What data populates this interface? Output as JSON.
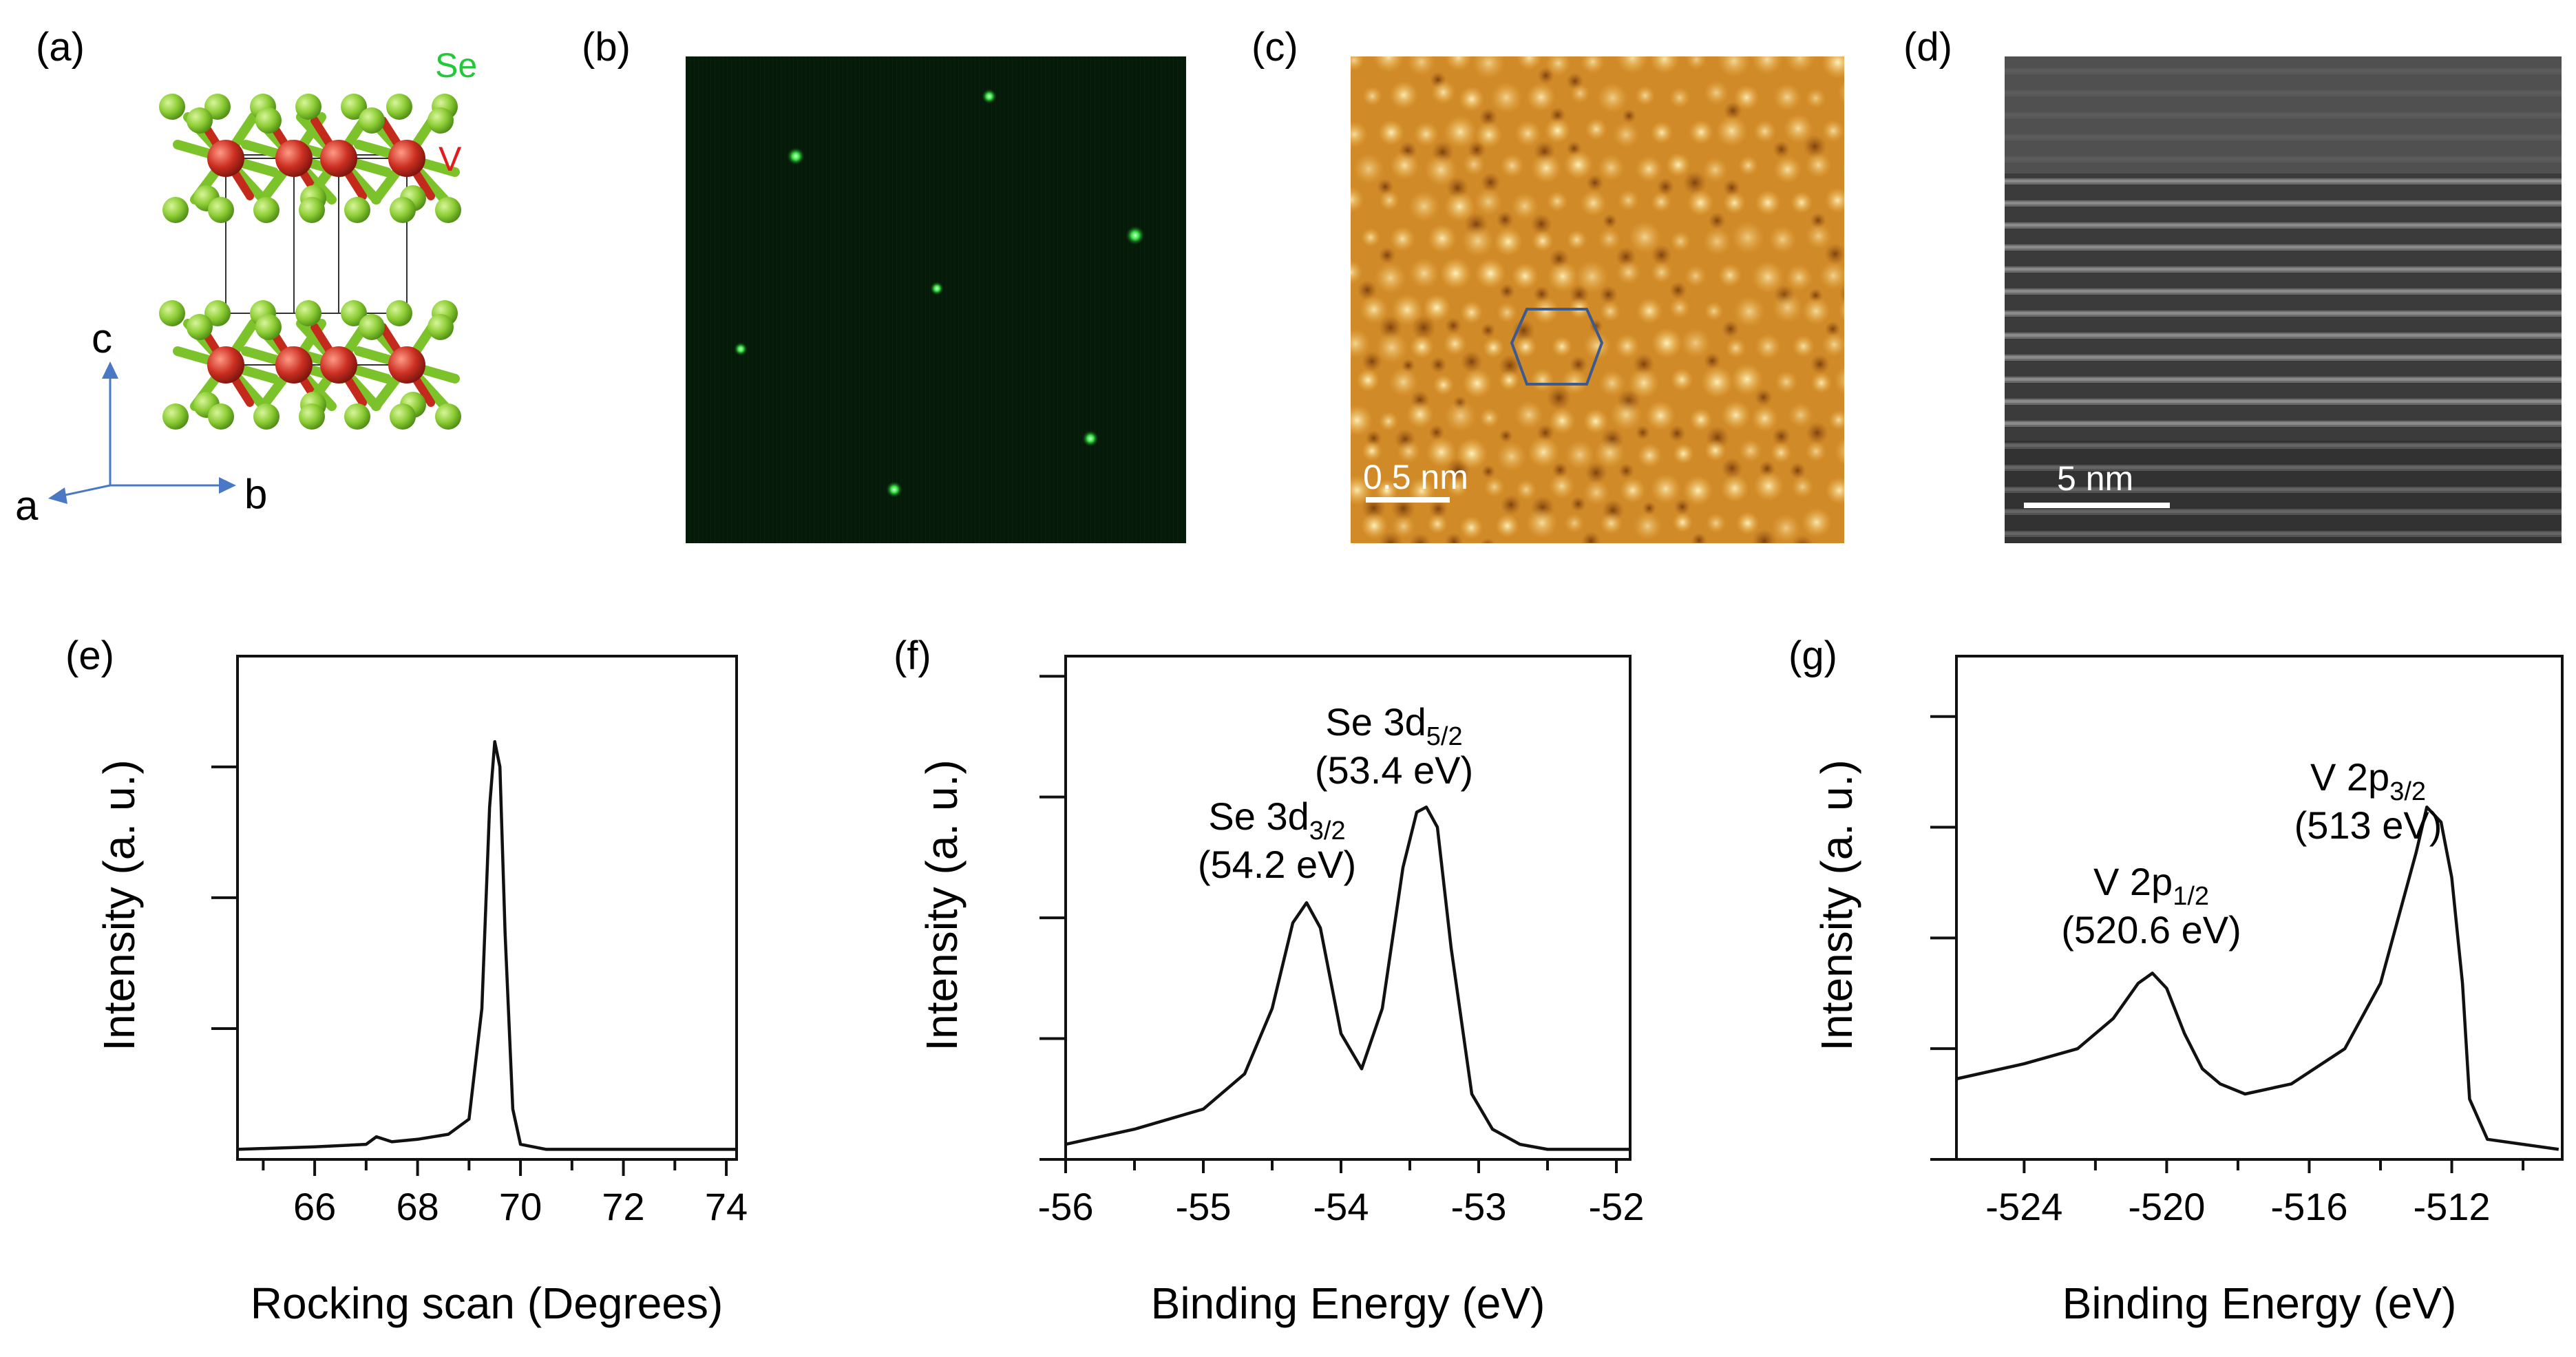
{
  "figure": {
    "panels": {
      "a": {
        "label": "(a)",
        "atom_labels": {
          "se": "Se",
          "v": "V"
        },
        "axes": {
          "c": "c",
          "a": "a",
          "b": "b"
        },
        "colors": {
          "se": "#7cc22a",
          "v": "#c42a1c",
          "arrow": "#4a78c4",
          "se_text": "#22c83a",
          "v_text": "#e01d1d"
        }
      },
      "b": {
        "label": "(b)"
      },
      "c": {
        "label": "(c)",
        "scalebar": "0.5 nm"
      },
      "d": {
        "label": "(d)",
        "scalebar": "5 nm"
      },
      "e": {
        "label": "(e)"
      },
      "f": {
        "label": "(f)"
      },
      "g": {
        "label": "(g)"
      }
    }
  },
  "chart_data": [
    {
      "id": "e",
      "type": "line",
      "title": "",
      "xlabel": "Rocking scan (Degrees)",
      "ylabel": "Intensity (a. u.)",
      "xlim": [
        64.5,
        74.2
      ],
      "ylim": [
        0,
        1.0
      ],
      "xticks": [
        66,
        68,
        70,
        72,
        74
      ],
      "xtick_labels": [
        "66",
        "68",
        "70",
        "72",
        "74"
      ],
      "yticks": [
        0.26,
        0.52,
        0.78
      ],
      "x": [
        64.5,
        66.0,
        67.0,
        67.2,
        67.5,
        68.0,
        68.6,
        69.0,
        69.25,
        69.4,
        69.5,
        69.6,
        69.7,
        69.85,
        70.0,
        70.5,
        72.0,
        74.2
      ],
      "y": [
        0.02,
        0.025,
        0.03,
        0.045,
        0.035,
        0.04,
        0.05,
        0.08,
        0.3,
        0.7,
        0.83,
        0.78,
        0.45,
        0.1,
        0.03,
        0.02,
        0.02,
        0.02
      ],
      "annotations": []
    },
    {
      "id": "f",
      "type": "line",
      "title": "",
      "xlabel": "Binding Energy (eV)",
      "ylabel": "Intensity (a. u.)",
      "xlim": [
        -56.0,
        -51.9
      ],
      "ylim": [
        0,
        1.0
      ],
      "xticks": [
        -56,
        -55,
        -54,
        -53,
        -52
      ],
      "xtick_labels": [
        "-56",
        "-55",
        "-54",
        "-53",
        "-52"
      ],
      "yticks": [
        0.0,
        0.24,
        0.48,
        0.72,
        0.96
      ],
      "x": [
        -56.0,
        -55.5,
        -55.0,
        -54.7,
        -54.5,
        -54.35,
        -54.25,
        -54.15,
        -54.0,
        -53.85,
        -53.7,
        -53.55,
        -53.45,
        -53.38,
        -53.3,
        -53.2,
        -53.05,
        -52.9,
        -52.7,
        -52.5,
        -52.0,
        -51.9
      ],
      "y": [
        0.03,
        0.06,
        0.1,
        0.17,
        0.3,
        0.47,
        0.51,
        0.46,
        0.25,
        0.18,
        0.3,
        0.58,
        0.69,
        0.7,
        0.66,
        0.42,
        0.13,
        0.06,
        0.03,
        0.02,
        0.02,
        0.02
      ],
      "annotations": [
        {
          "line1": "Se 3d",
          "sub": "3/2",
          "line2": "(54.2 eV)"
        },
        {
          "line1": "Se 3d",
          "sub": "5/2",
          "line2": "(53.4 eV)"
        }
      ]
    },
    {
      "id": "g",
      "type": "line",
      "title": "",
      "xlabel": "Binding Energy (eV)",
      "ylabel": "Intensity (a. u.)",
      "xlim": [
        -525.9,
        -508.9
      ],
      "ylim": [
        0,
        1.0
      ],
      "xticks": [
        -524,
        -520,
        -516,
        -512
      ],
      "xtick_labels": [
        "-524",
        "-520",
        "-516",
        "-512"
      ],
      "yticks": [
        0.0,
        0.22,
        0.44,
        0.66,
        0.88
      ],
      "x": [
        -525.9,
        -524.0,
        -522.5,
        -521.5,
        -520.8,
        -520.4,
        -520.0,
        -519.5,
        -519.0,
        -518.5,
        -517.8,
        -516.5,
        -515.0,
        -514.0,
        -513.5,
        -513.0,
        -512.7,
        -512.3,
        -512.0,
        -511.7,
        -511.5,
        -511.0,
        -510.0,
        -509.0
      ],
      "y": [
        0.16,
        0.19,
        0.22,
        0.28,
        0.35,
        0.37,
        0.34,
        0.25,
        0.18,
        0.15,
        0.13,
        0.15,
        0.22,
        0.35,
        0.48,
        0.61,
        0.7,
        0.67,
        0.56,
        0.35,
        0.12,
        0.04,
        0.03,
        0.02
      ],
      "annotations": [
        {
          "line1": "V 2p",
          "sub": "1/2",
          "line2": "(520.6 eV)"
        },
        {
          "line1": "V 2p",
          "sub": "3/2",
          "line2": "(513 eV)"
        }
      ]
    }
  ]
}
